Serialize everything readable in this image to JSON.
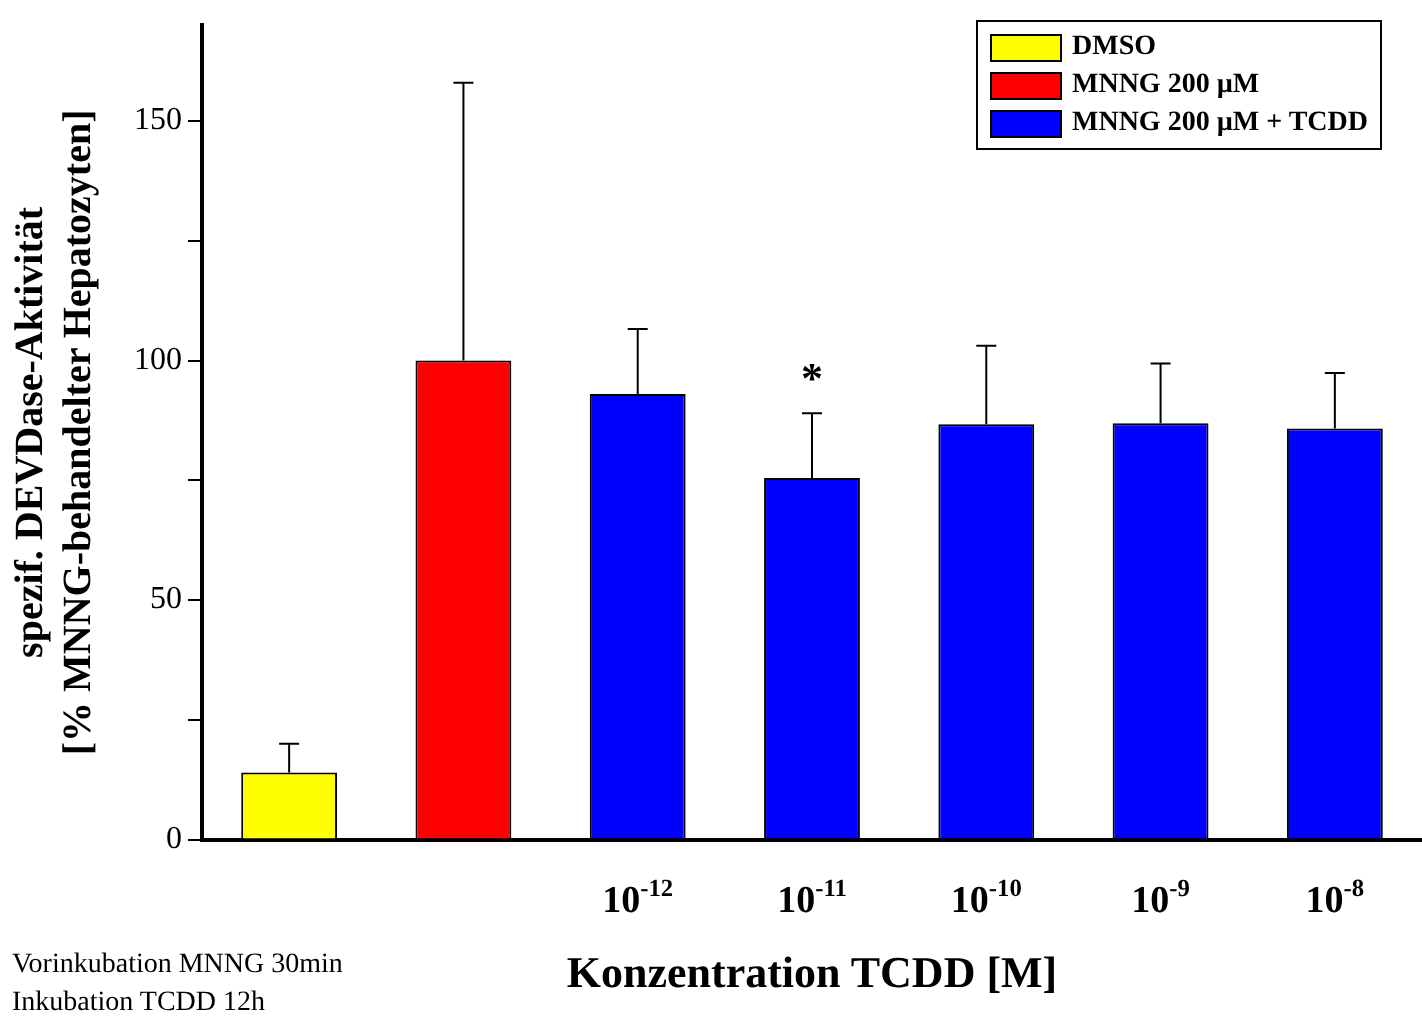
{
  "chart_data": {
    "type": "bar",
    "ylabel": "spezif. DEVDase-Aktivität\n[% MNNG-behandelter Hepatozyten]",
    "xlabel": "Konzentration TCDD [M]",
    "categories": [
      null,
      null,
      "10$^{-12}$",
      "10$^{-11}$",
      "10$^{-10}$",
      "10$^{-9}$",
      "10$^{-8}$"
    ],
    "series": [
      {
        "name": "DMSO",
        "color": "#ffff00",
        "values": [
          14,
          null,
          null,
          null,
          null,
          null,
          null
        ],
        "errors": [
          [
            14,
            20
          ],
          null,
          null,
          null,
          null,
          null,
          null
        ]
      },
      {
        "name": "MNNG 200 µM",
        "color": "#ff0000",
        "values": [
          null,
          100,
          null,
          null,
          null,
          null,
          null
        ],
        "errors": [
          null,
          [
            100,
            158
          ],
          null,
          null,
          null,
          null,
          null
        ]
      },
      {
        "name": "MNNG 200 µM + TCDD",
        "color": "#0000ff",
        "values": [
          null,
          null,
          93,
          75.5,
          86.7,
          86.9,
          85.8
        ],
        "errors": [
          null,
          null,
          [
            93,
            106.6
          ],
          [
            75.5,
            89
          ],
          [
            86.7,
            103.1
          ],
          [
            86.9,
            99.4
          ],
          [
            85.8,
            97.4
          ]
        ]
      }
    ],
    "ylim": [
      0,
      170
    ],
    "yticks": [
      0,
      {
        "value": 25,
        "label": null
      },
      50,
      {
        "value": 75,
        "label": null
      },
      100,
      {
        "value": 125,
        "label": null
      },
      150
    ],
    "legend": "top right",
    "annotations": [
      {
        "text": "*",
        "x": "10$^{-11}$",
        "y": 89
      },
      "Vorinkubation MNNG 30min",
      "Inkubation TCDD 12h"
    ]
  }
}
